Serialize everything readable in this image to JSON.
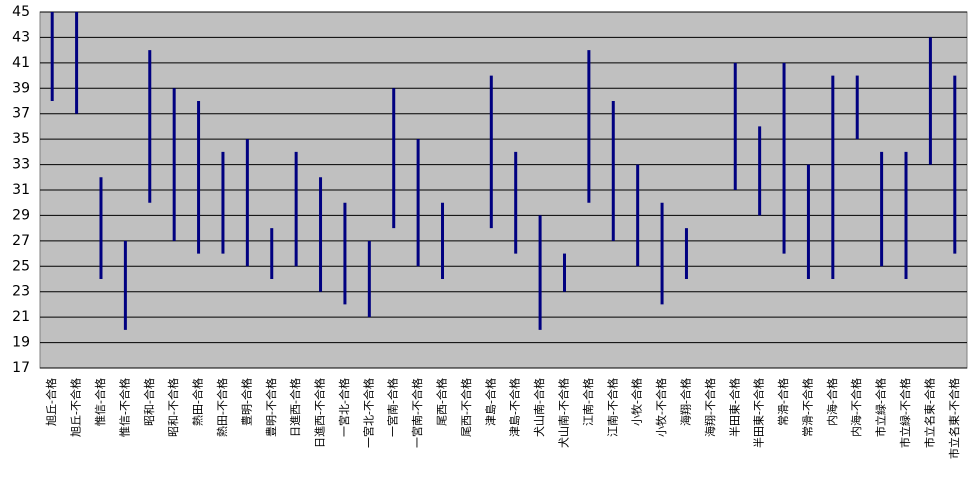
{
  "chart_data": {
    "type": "range",
    "color": "#000080",
    "plot_background": "#c0c0c0",
    "grid": true,
    "categories": [
      "旭丘-合格",
      "旭丘-不合格",
      "惟信-合格",
      "惟信-不合格",
      "昭和-合格",
      "昭和-不合格",
      "熱田-合格",
      "熱田-不合格",
      "豊明-合格",
      "豊明-不合格",
      "日進西-合格",
      "日進西-不合格",
      "一宮北-合格",
      "一宮北-不合格",
      "一宮南-合格",
      "一宮南-不合格",
      "尾西-合格",
      "尾西-不合格",
      "津島-合格",
      "津島-不合格",
      "犬山南-合格",
      "犬山南-不合格",
      "江南-合格",
      "江南-不合格",
      "小牧-合格",
      "小牧-不合格",
      "海翔-合格",
      "海翔-不合格",
      "半田東-合格",
      "半田東-不合格",
      "常滑-合格",
      "常滑-不合格",
      "内海-合格",
      "内海-不合格",
      "市立緑-合格",
      "市立緑-不合格",
      "市立名東-合格",
      "市立名東-不合格"
    ],
    "low": [
      38,
      37,
      24,
      20,
      30,
      27,
      26,
      26,
      25,
      24,
      25,
      23,
      22,
      21,
      28,
      25,
      24,
      null,
      28,
      26,
      20,
      23,
      30,
      27,
      25,
      22,
      24,
      null,
      31,
      29,
      26,
      24,
      24,
      35,
      25,
      24,
      33,
      26
    ],
    "high": [
      45,
      45,
      32,
      27,
      42,
      39,
      38,
      34,
      35,
      28,
      34,
      32,
      30,
      27,
      39,
      35,
      30,
      null,
      40,
      34,
      29,
      26,
      42,
      38,
      33,
      30,
      28,
      null,
      41,
      36,
      41,
      33,
      40,
      40,
      34,
      34,
      43,
      40
    ],
    "ylim": [
      17,
      45
    ],
    "yticks": [
      17,
      19,
      21,
      23,
      25,
      27,
      29,
      31,
      33,
      35,
      37,
      39,
      41,
      43,
      45
    ]
  }
}
